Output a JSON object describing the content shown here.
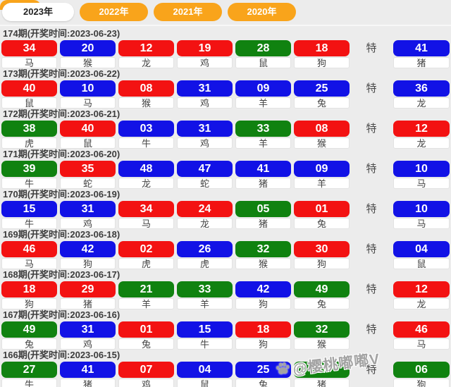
{
  "page": {
    "background": "#ececec"
  },
  "colors": {
    "red": "#f31212",
    "blue": "#1212e6",
    "green": "#108210",
    "orange": "#f9a41b",
    "tab_active_bg": "#ffffff",
    "header_text": "#3c3c3c"
  },
  "tabs": [
    {
      "label": "2023年",
      "active": true
    },
    {
      "label": "2022年",
      "active": false
    },
    {
      "label": "2021年",
      "active": false
    },
    {
      "label": "2020年",
      "active": false
    }
  ],
  "special_label": "特",
  "watermark": {
    "icon": "paw-icon",
    "text": "@樱桃嘟嘟V"
  },
  "draws": [
    {
      "period": "174期",
      "time": "(开奖时间:2023-06-23)",
      "numbers": [
        {
          "value": "34",
          "color": "red",
          "zodiac": "马"
        },
        {
          "value": "20",
          "color": "blue",
          "zodiac": "猴"
        },
        {
          "value": "12",
          "color": "red",
          "zodiac": "龙"
        },
        {
          "value": "19",
          "color": "red",
          "zodiac": "鸡"
        },
        {
          "value": "28",
          "color": "green",
          "zodiac": "鼠"
        },
        {
          "value": "18",
          "color": "red",
          "zodiac": "狗"
        }
      ],
      "special": {
        "value": "41",
        "color": "blue",
        "zodiac": "猪"
      }
    },
    {
      "period": "173期",
      "time": "(开奖时间:2023-06-22)",
      "numbers": [
        {
          "value": "40",
          "color": "red",
          "zodiac": "鼠"
        },
        {
          "value": "10",
          "color": "blue",
          "zodiac": "马"
        },
        {
          "value": "08",
          "color": "red",
          "zodiac": "猴"
        },
        {
          "value": "31",
          "color": "blue",
          "zodiac": "鸡"
        },
        {
          "value": "09",
          "color": "blue",
          "zodiac": "羊"
        },
        {
          "value": "25",
          "color": "blue",
          "zodiac": "兔"
        }
      ],
      "special": {
        "value": "36",
        "color": "blue",
        "zodiac": "龙"
      }
    },
    {
      "period": "172期",
      "time": "(开奖时间:2023-06-21)",
      "numbers": [
        {
          "value": "38",
          "color": "green",
          "zodiac": "虎"
        },
        {
          "value": "40",
          "color": "red",
          "zodiac": "鼠"
        },
        {
          "value": "03",
          "color": "blue",
          "zodiac": "牛"
        },
        {
          "value": "31",
          "color": "blue",
          "zodiac": "鸡"
        },
        {
          "value": "33",
          "color": "green",
          "zodiac": "羊"
        },
        {
          "value": "08",
          "color": "red",
          "zodiac": "猴"
        }
      ],
      "special": {
        "value": "12",
        "color": "red",
        "zodiac": "龙"
      }
    },
    {
      "period": "171期",
      "time": "(开奖时间:2023-06-20)",
      "numbers": [
        {
          "value": "39",
          "color": "green",
          "zodiac": "牛"
        },
        {
          "value": "35",
          "color": "red",
          "zodiac": "蛇"
        },
        {
          "value": "48",
          "color": "blue",
          "zodiac": "龙"
        },
        {
          "value": "47",
          "color": "blue",
          "zodiac": "蛇"
        },
        {
          "value": "41",
          "color": "blue",
          "zodiac": "猪"
        },
        {
          "value": "09",
          "color": "blue",
          "zodiac": "羊"
        }
      ],
      "special": {
        "value": "10",
        "color": "blue",
        "zodiac": "马"
      }
    },
    {
      "period": "170期",
      "time": "(开奖时间:2023-06-19)",
      "numbers": [
        {
          "value": "15",
          "color": "blue",
          "zodiac": "牛"
        },
        {
          "value": "31",
          "color": "blue",
          "zodiac": "鸡"
        },
        {
          "value": "34",
          "color": "red",
          "zodiac": "马"
        },
        {
          "value": "24",
          "color": "red",
          "zodiac": "龙"
        },
        {
          "value": "05",
          "color": "green",
          "zodiac": "猪"
        },
        {
          "value": "01",
          "color": "red",
          "zodiac": "兔"
        }
      ],
      "special": {
        "value": "10",
        "color": "blue",
        "zodiac": "马"
      }
    },
    {
      "period": "169期",
      "time": "(开奖时间:2023-06-18)",
      "numbers": [
        {
          "value": "46",
          "color": "red",
          "zodiac": "马"
        },
        {
          "value": "42",
          "color": "blue",
          "zodiac": "狗"
        },
        {
          "value": "02",
          "color": "red",
          "zodiac": "虎"
        },
        {
          "value": "26",
          "color": "blue",
          "zodiac": "虎"
        },
        {
          "value": "32",
          "color": "green",
          "zodiac": "猴"
        },
        {
          "value": "30",
          "color": "red",
          "zodiac": "狗"
        }
      ],
      "special": {
        "value": "04",
        "color": "blue",
        "zodiac": "鼠"
      }
    },
    {
      "period": "168期",
      "time": "(开奖时间:2023-06-17)",
      "numbers": [
        {
          "value": "18",
          "color": "red",
          "zodiac": "狗"
        },
        {
          "value": "29",
          "color": "red",
          "zodiac": "猪"
        },
        {
          "value": "21",
          "color": "green",
          "zodiac": "羊"
        },
        {
          "value": "33",
          "color": "green",
          "zodiac": "羊"
        },
        {
          "value": "42",
          "color": "blue",
          "zodiac": "狗"
        },
        {
          "value": "49",
          "color": "green",
          "zodiac": "兔"
        }
      ],
      "special": {
        "value": "12",
        "color": "red",
        "zodiac": "龙"
      }
    },
    {
      "period": "167期",
      "time": "(开奖时间:2023-06-16)",
      "numbers": [
        {
          "value": "49",
          "color": "green",
          "zodiac": "兔"
        },
        {
          "value": "31",
          "color": "blue",
          "zodiac": "鸡"
        },
        {
          "value": "01",
          "color": "red",
          "zodiac": "兔"
        },
        {
          "value": "15",
          "color": "blue",
          "zodiac": "牛"
        },
        {
          "value": "18",
          "color": "red",
          "zodiac": "狗"
        },
        {
          "value": "32",
          "color": "green",
          "zodiac": "猴"
        }
      ],
      "special": {
        "value": "46",
        "color": "red",
        "zodiac": "马"
      }
    },
    {
      "period": "166期",
      "time": "(开奖时间:2023-06-15)",
      "numbers": [
        {
          "value": "27",
          "color": "green",
          "zodiac": "牛"
        },
        {
          "value": "41",
          "color": "blue",
          "zodiac": "猪"
        },
        {
          "value": "07",
          "color": "red",
          "zodiac": "鸡"
        },
        {
          "value": "04",
          "color": "blue",
          "zodiac": "鼠"
        },
        {
          "value": "25",
          "color": "blue",
          "zodiac": "兔"
        },
        {
          "value": "17",
          "color": "green",
          "zodiac": "猪"
        }
      ],
      "special": {
        "value": "06",
        "color": "green",
        "zodiac": "狗"
      }
    }
  ]
}
